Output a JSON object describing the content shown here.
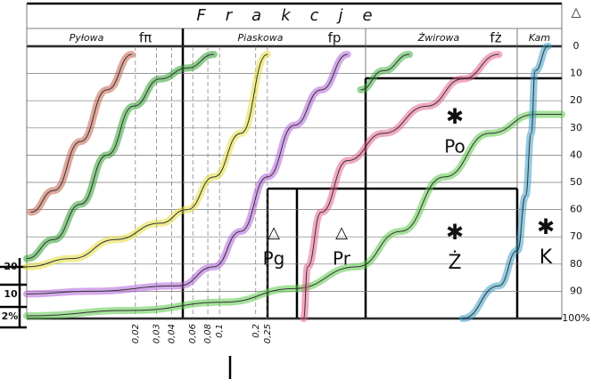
{
  "chart_data": {
    "type": "line",
    "title": "Frakcje",
    "fractions": [
      {
        "name": "Pyłowa",
        "symbol": "fπ"
      },
      {
        "name": "Piaskowa",
        "symbol": "fp"
      },
      {
        "name": "Żwirowa",
        "symbol": "fż"
      },
      {
        "name": "Kam"
      }
    ],
    "axis_symbol": "△",
    "log_x": true,
    "xlim": [
      0.0025,
      70
    ],
    "xticks": [
      {
        "value": 0.02,
        "label": "0,02"
      },
      {
        "value": 0.03,
        "label": "0,03"
      },
      {
        "value": 0.04,
        "label": "0,04"
      },
      {
        "value": 0.06,
        "label": "0,06"
      },
      {
        "value": 0.08,
        "label": "0,08"
      },
      {
        "value": 0.1,
        "label": "0,1"
      },
      {
        "value": 0.2,
        "label": "0,2"
      },
      {
        "value": 0.25,
        "label": "0,25"
      }
    ],
    "ylim": [
      0,
      100
    ],
    "y_inverted": true,
    "yticks": [
      0,
      10,
      20,
      30,
      40,
      50,
      60,
      70,
      80,
      90,
      {
        "value": 100,
        "label": "100%"
      }
    ],
    "left_labels": [
      "20",
      "10",
      "2%"
    ],
    "grid": true,
    "zones": [
      {
        "symbol": "△",
        "label": "Pg"
      },
      {
        "symbol": "△",
        "label": "Pr"
      },
      {
        "symbol": "✱",
        "label": "Po"
      },
      {
        "symbol": "✱",
        "label": "Ż"
      },
      {
        "symbol": "✱",
        "label": "K"
      }
    ],
    "series": [
      {
        "color": "#c4604a",
        "x": [
          0.0027,
          0.0042,
          0.007,
          0.0116,
          0.0187
        ],
        "values": [
          61,
          53,
          35,
          16,
          3
        ]
      },
      {
        "color": "#30a030",
        "x": [
          0.0025,
          0.0042,
          0.007,
          0.0116,
          0.0193,
          0.032,
          0.054,
          0.09
        ],
        "values": [
          78,
          71,
          58,
          40,
          22,
          12,
          8,
          3
        ]
      },
      {
        "color": "#e4dc3a",
        "x": [
          0.0025,
          0.0059,
          0.0137,
          0.032,
          0.054,
          0.09,
          0.15,
          0.25
        ],
        "values": [
          81,
          78,
          71,
          65,
          60,
          48,
          32,
          3
        ]
      },
      {
        "color": "#b060d8",
        "x": [
          0.0025,
          0.0083,
          0.046,
          0.09,
          0.15,
          0.25,
          0.42,
          0.7,
          1.16
        ],
        "values": [
          91,
          90,
          88,
          81,
          68,
          48,
          29,
          16,
          3
        ]
      },
      {
        "color": "#5cc84a",
        "x": [
          0.0025,
          0.0193,
          0.109,
          0.42,
          1.39,
          3.2,
          7.4,
          17.6,
          42,
          70
        ],
        "values": [
          99,
          97,
          94,
          89,
          81,
          68,
          48,
          32,
          25,
          25
        ]
      },
      {
        "color": "#e8628e",
        "x": [
          0.5,
          0.54,
          0.7,
          1.16,
          2.3,
          5.3,
          10.5,
          21
        ],
        "values": [
          100,
          81,
          61,
          42,
          32,
          22,
          12,
          3
        ]
      },
      {
        "color": "#40b040",
        "x": [
          1.49,
          2.3,
          3.8
        ],
        "values": [
          16,
          9,
          3
        ]
      },
      {
        "color": "#3a9ec8",
        "x": [
          10.5,
          21,
          30,
          35,
          39,
          42,
          54
        ],
        "values": [
          100,
          88,
          75,
          55,
          32,
          9,
          0
        ]
      }
    ]
  }
}
